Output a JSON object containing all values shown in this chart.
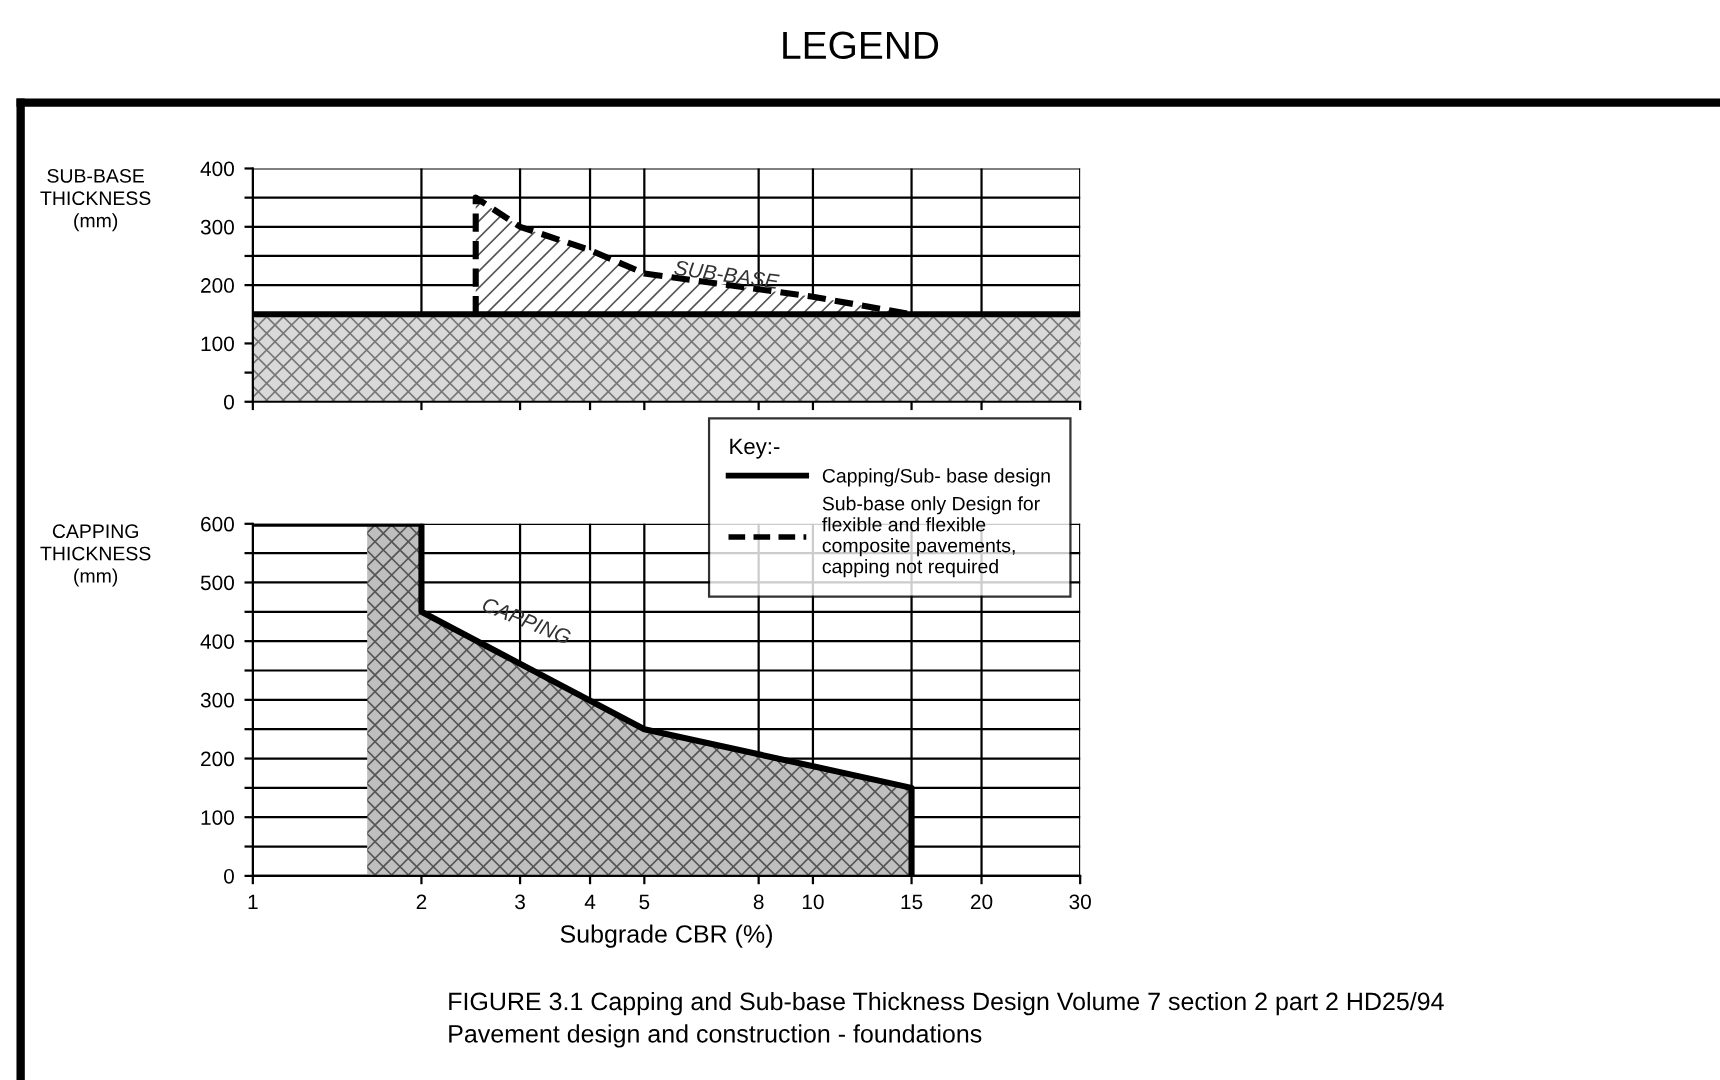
{
  "chart_data": [
    {
      "type": "line",
      "title": "LEGEND",
      "ylabel": "SUB-BASE\nTHICKNESS\n(mm)",
      "log": "x",
      "xlim": [
        1,
        30
      ],
      "xticks": [
        1,
        2,
        3,
        4,
        5,
        8,
        10,
        15,
        20,
        30
      ],
      "ylim": [
        0,
        400
      ],
      "yticks": [
        0,
        {
          "value": 50,
          "label": null
        },
        100,
        200,
        {
          "value": 250,
          "label": null
        },
        300,
        {
          "value": 350,
          "label": null
        },
        400
      ],
      "tick_labels": "y",
      "grid": true,
      "legend": "bottom right",
      "legend_title": "Key:-",
      "bands": [
        {
          "axis": "y",
          "from": 0,
          "to": 150,
          "color": "#d9d9d9"
        }
      ],
      "series": [
        {
          "name": "Capping/Sub- base design",
          "color": "#000000",
          "line_style": "solid",
          "x": [
            1,
            30
          ],
          "values": [
            150,
            150
          ]
        },
        {
          "name": "Sub-base only Design for\nflexible and flexible\ncomposite pavements,\ncapping not required",
          "type": "area",
          "color": "#000000",
          "line_style": "dashed",
          "x": [
            2.5,
            2.5,
            3,
            4,
            5,
            10,
            15
          ],
          "values": [
            150,
            350,
            300,
            260,
            220,
            180,
            150
          ]
        }
      ],
      "annotations": [
        {
          "text": "SUB-BASE",
          "x": 7,
          "y": 215
        }
      ]
    },
    {
      "type": "line",
      "ylabel": "CAPPING\nTHICKNESS\n(mm)",
      "xlabel": "Subgrade CBR (%)",
      "log": "x",
      "xlim": [
        1,
        30
      ],
      "xticks": [
        1,
        2,
        3,
        4,
        5,
        8,
        10,
        15,
        20,
        30
      ],
      "ylim": [
        0,
        600
      ],
      "yticks": [
        0,
        {
          "value": 50,
          "label": null
        },
        100,
        {
          "value": 150,
          "label": null
        },
        200,
        {
          "value": 250,
          "label": null
        },
        300,
        {
          "value": 350,
          "label": null
        },
        400,
        {
          "value": 450,
          "label": null
        },
        500,
        {
          "value": 550,
          "label": null
        },
        600
      ],
      "grid": true,
      "series": [
        {
          "type": "area",
          "color": "#bfbfbf",
          "line_style": "none",
          "x": [
            1.6,
            2,
            2,
            5,
            15,
            15
          ],
          "values": [
            600,
            600,
            450,
            250,
            150,
            0
          ]
        },
        {
          "color": "#000000",
          "line_style": "solid",
          "x": [
            1,
            2,
            2,
            5,
            15,
            15
          ],
          "values": [
            600,
            600,
            450,
            250,
            150,
            0
          ]
        }
      ],
      "annotations": [
        "CAPPING",
        "FIGURE 3.1 Capping and Sub-base Thickness Design Volume 7 section 2 part 2 HD25/94\nPavement design and construction - foundations"
      ]
    }
  ]
}
